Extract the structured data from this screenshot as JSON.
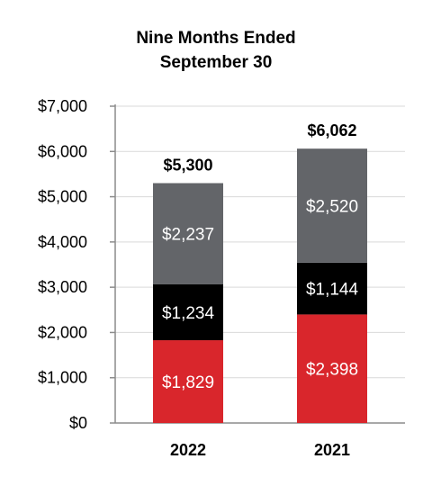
{
  "chart_data": {
    "type": "bar",
    "stacked": true,
    "title": [
      "Nine Months Ended",
      "September 30"
    ],
    "categories": [
      "2022",
      "2021"
    ],
    "series": [
      {
        "color": "#d9262c",
        "values": [
          1829,
          2398
        ],
        "labels": [
          "$1,829",
          "$2,398"
        ]
      },
      {
        "color": "#000000",
        "values": [
          1234,
          1144
        ],
        "labels": [
          "$1,234",
          "$1,144"
        ]
      },
      {
        "color": "#636569",
        "values": [
          2237,
          2520
        ],
        "labels": [
          "$2,237",
          "$2,520"
        ]
      }
    ],
    "totals": [
      "$5,300",
      "$6,062"
    ],
    "ylim": [
      0,
      7000
    ],
    "yticks": [
      0,
      1000,
      2000,
      3000,
      4000,
      5000,
      6000,
      7000
    ],
    "ytick_labels": [
      "$0",
      "$1,000",
      "$2,000",
      "$3,000",
      "$4,000",
      "$5,000",
      "$6,000",
      "$7,000"
    ],
    "grid": true,
    "grid_color": "#d9d9d9",
    "axis_color": "#8c8c8c"
  }
}
